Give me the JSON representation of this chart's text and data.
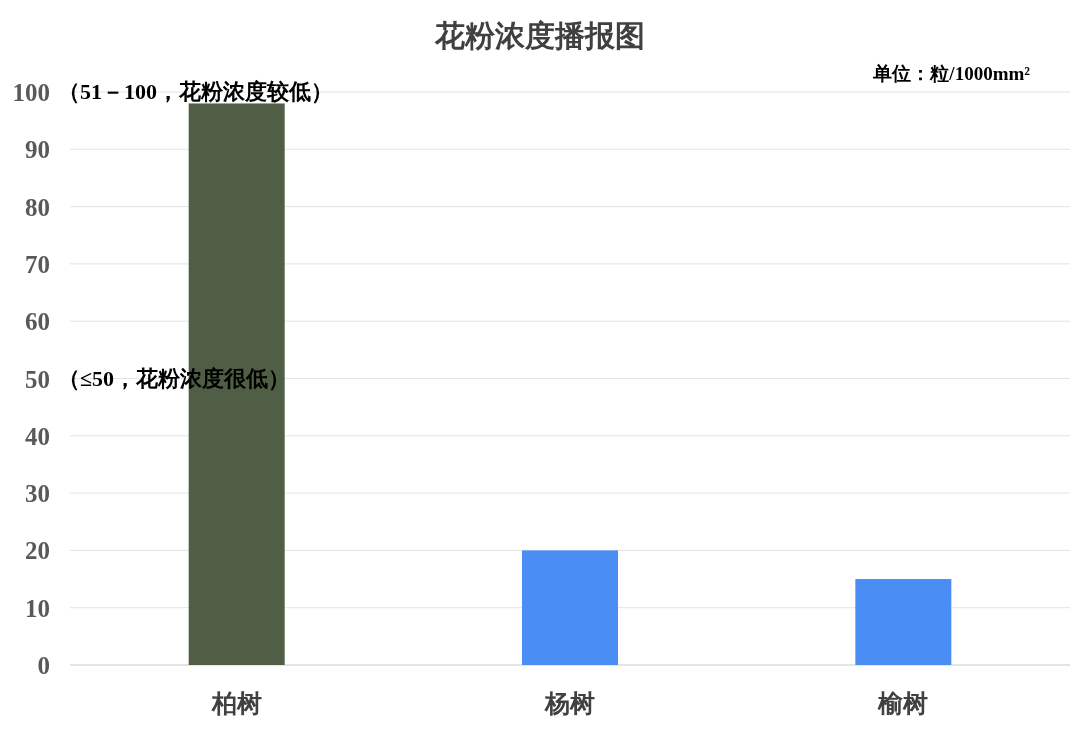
{
  "chart_data": {
    "type": "bar",
    "title": "花粉浓度播报图",
    "categories": [
      "柏树",
      "杨树",
      "榆树"
    ],
    "values": [
      98,
      20,
      15
    ],
    "colors": [
      "#4f5e45",
      "#4a8ef5",
      "#4a8ef5"
    ],
    "ylim": [
      0,
      100
    ],
    "yticks": [
      0,
      10,
      20,
      30,
      40,
      50,
      60,
      70,
      80,
      90,
      100
    ],
    "grid": "y",
    "annotations": [
      "（51－100，花粉浓度较低）",
      "（≤50，花粉浓度很低）",
      "单位：粒/1000mm²"
    ]
  }
}
